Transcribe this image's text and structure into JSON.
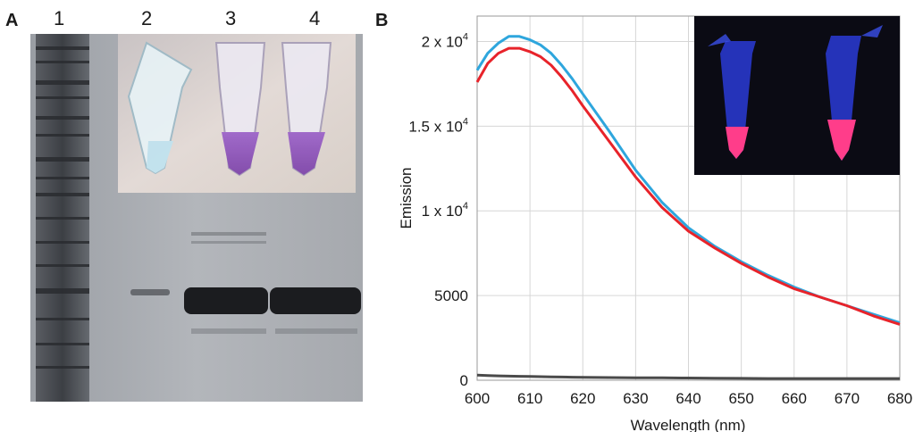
{
  "panel_a": {
    "letter": "A",
    "lanes": [
      "1",
      "2",
      "3",
      "4"
    ]
  },
  "panel_b": {
    "letter": "B"
  },
  "chart_data": {
    "type": "line",
    "title": "",
    "xlabel": "Wavelength (nm)",
    "ylabel": "Emission",
    "xlim": [
      600,
      680
    ],
    "ylim": [
      0,
      21500
    ],
    "grid": true,
    "x_ticks": [
      600,
      610,
      620,
      630,
      640,
      650,
      660,
      670,
      680
    ],
    "y_ticks": [
      {
        "value": 0,
        "base": "0",
        "exp": ""
      },
      {
        "value": 5000,
        "base": "5000",
        "exp": ""
      },
      {
        "value": 10000,
        "base": "1 x 10",
        "exp": "4"
      },
      {
        "value": 15000,
        "base": "1.5 x 10",
        "exp": "4"
      },
      {
        "value": 20000,
        "base": "2 x 10",
        "exp": "4"
      }
    ],
    "x": [
      600,
      602,
      604,
      606,
      608,
      610,
      612,
      614,
      616,
      618,
      620,
      625,
      630,
      635,
      640,
      645,
      650,
      655,
      660,
      665,
      670,
      675,
      680
    ],
    "series": [
      {
        "color": "#2ea6dd",
        "values": [
          18300,
          19300,
          19900,
          20300,
          20300,
          20100,
          19800,
          19300,
          18600,
          17800,
          16900,
          14700,
          12400,
          10500,
          9000,
          7900,
          7000,
          6200,
          5500,
          4900,
          4400,
          3900,
          3400
        ]
      },
      {
        "color": "#e8232a",
        "values": [
          17600,
          18700,
          19300,
          19600,
          19600,
          19400,
          19100,
          18600,
          17900,
          17100,
          16200,
          14100,
          12000,
          10200,
          8800,
          7800,
          6900,
          6100,
          5400,
          4900,
          4400,
          3800,
          3300
        ]
      },
      {
        "color": "#4a4a4a",
        "values": [
          300,
          280,
          260,
          240,
          230,
          220,
          210,
          200,
          190,
          180,
          170,
          160,
          150,
          140,
          130,
          120,
          110,
          100,
          100,
          100,
          100,
          100,
          100
        ]
      }
    ]
  },
  "colors": {
    "gel_bg": "#a9acb1",
    "band": "#1b1c1f",
    "tube_purple": "#8a4fb8",
    "tube_pink": "#ff3d8a",
    "inset_dark": "#0b0b14"
  }
}
